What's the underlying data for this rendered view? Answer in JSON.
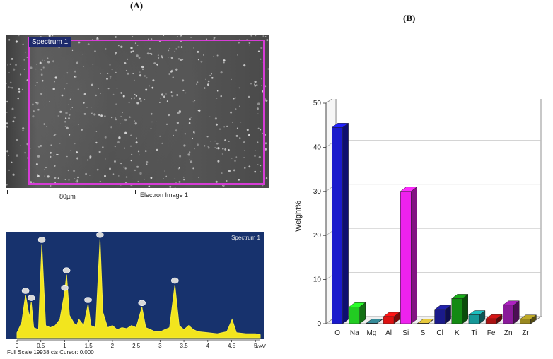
{
  "panels": {
    "a_label": "(A)",
    "b_label": "(B)"
  },
  "sem": {
    "spectrum_tag": "Spectrum 1",
    "scale_text": "80µm",
    "caption": "Electron Image 1"
  },
  "eds": {
    "spectrum_tag": "Spectrum 1",
    "full_scale": "Full Scale 19938 cts Cursor: 0.000",
    "unit": "keV",
    "x_ticks": [
      "0",
      "0.5",
      "1",
      "1.5",
      "2",
      "2.5",
      "3",
      "3.5",
      "4",
      "4.5",
      "5"
    ]
  },
  "chart_data": [
    {
      "type": "line",
      "x": [
        0.0,
        0.1,
        0.18,
        0.26,
        0.3,
        0.35,
        0.45,
        0.52,
        0.6,
        0.7,
        0.8,
        0.9,
        1.0,
        1.04,
        1.1,
        1.2,
        1.25,
        1.3,
        1.4,
        1.49,
        1.55,
        1.65,
        1.74,
        1.8,
        1.9,
        2.0,
        2.1,
        2.2,
        2.3,
        2.4,
        2.5,
        2.62,
        2.7,
        2.8,
        2.9,
        3.0,
        3.1,
        3.2,
        3.31,
        3.4,
        3.5,
        3.6,
        3.7,
        3.8,
        4.0,
        4.2,
        4.4,
        4.51,
        4.6,
        4.8,
        5.0,
        5.1
      ],
      "values": [
        0.05,
        0.15,
        0.42,
        0.2,
        0.35,
        0.1,
        0.08,
        0.92,
        0.12,
        0.1,
        0.12,
        0.18,
        0.45,
        0.62,
        0.22,
        0.14,
        0.12,
        0.18,
        0.12,
        0.33,
        0.12,
        0.1,
        0.97,
        0.25,
        0.1,
        0.12,
        0.08,
        0.1,
        0.09,
        0.12,
        0.1,
        0.3,
        0.1,
        0.08,
        0.06,
        0.06,
        0.08,
        0.1,
        0.52,
        0.12,
        0.08,
        0.12,
        0.08,
        0.06,
        0.05,
        0.04,
        0.06,
        0.18,
        0.05,
        0.04,
        0.04,
        0.03
      ],
      "xlim": [
        0,
        5.1
      ],
      "ylim": [
        0,
        1
      ]
    },
    {
      "type": "bar",
      "categories": [
        "O",
        "Na",
        "Mg",
        "Al",
        "Si",
        "S",
        "Cl",
        "K",
        "Ti",
        "Fe",
        "Zn",
        "Zr"
      ],
      "values": [
        44.5,
        3.8,
        0.1,
        1.6,
        30.0,
        0.1,
        3.2,
        5.7,
        2.0,
        1.1,
        4.2,
        1.0
      ],
      "ylabel": "Weight%",
      "yticks": [
        "0",
        "10",
        "20",
        "30",
        "40",
        "50"
      ],
      "ylim": [
        0,
        50
      ],
      "colors": [
        "#1a1acc",
        "#22cc22",
        "#2a6f7a",
        "#dd1111",
        "#ee22ee",
        "#b8a030",
        "#1a1a8a",
        "#138a13",
        "#169898",
        "#aa1111",
        "#8a1a9a",
        "#998820"
      ]
    }
  ]
}
